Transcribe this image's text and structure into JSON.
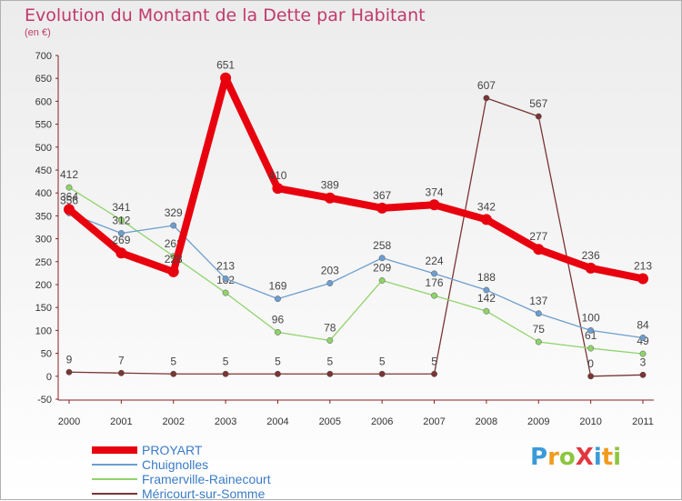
{
  "title": "Evolution du Montant de la Dette par Habitant",
  "subtitle": "(en €)",
  "logo": {
    "text": "ProXiti",
    "letters": [
      {
        "ch": "P",
        "color": "#3a9ad9"
      },
      {
        "ch": "r",
        "color": "#f29b1d"
      },
      {
        "ch": "o",
        "color": "#8cc63f"
      },
      {
        "ch": "X",
        "color": "#e2373e"
      },
      {
        "ch": "i",
        "color": "#3a9ad9"
      },
      {
        "ch": "t",
        "color": "#f29b1d"
      },
      {
        "ch": "i",
        "color": "#8cc63f"
      }
    ]
  },
  "chart_data": {
    "type": "line",
    "title": "Evolution du Montant de la Dette par Habitant",
    "subtitle": "(en €)",
    "x": [
      "2000",
      "2001",
      "2002",
      "2003",
      "2004",
      "2005",
      "2006",
      "2007",
      "2008",
      "2009",
      "2010",
      "2011"
    ],
    "ylim": [
      -50,
      700
    ],
    "yticks": [
      -50,
      0,
      50,
      100,
      150,
      200,
      250,
      300,
      350,
      400,
      450,
      500,
      550,
      600,
      650,
      700
    ],
    "grid": false,
    "legend_position": "bottom-left",
    "series": [
      {
        "name": "PROYART",
        "color": "#e8000e",
        "values": [
          364,
          269,
          228,
          651,
          410,
          389,
          367,
          374,
          342,
          277,
          236,
          213
        ]
      },
      {
        "name": "Chuignolles",
        "color": "#6d9ecf",
        "values": [
          356,
          312,
          329,
          213,
          169,
          203,
          258,
          224,
          188,
          137,
          100,
          84
        ]
      },
      {
        "name": "Framerville-Rainecourt",
        "color": "#8fd36a",
        "values": [
          412,
          341,
          262,
          182,
          96,
          78,
          209,
          176,
          142,
          75,
          61,
          49
        ]
      },
      {
        "name": "Méricourt-sur-Somme",
        "color": "#7a3535",
        "values": [
          9,
          7,
          5,
          5,
          5,
          5,
          5,
          5,
          607,
          567,
          0,
          3
        ]
      }
    ]
  }
}
